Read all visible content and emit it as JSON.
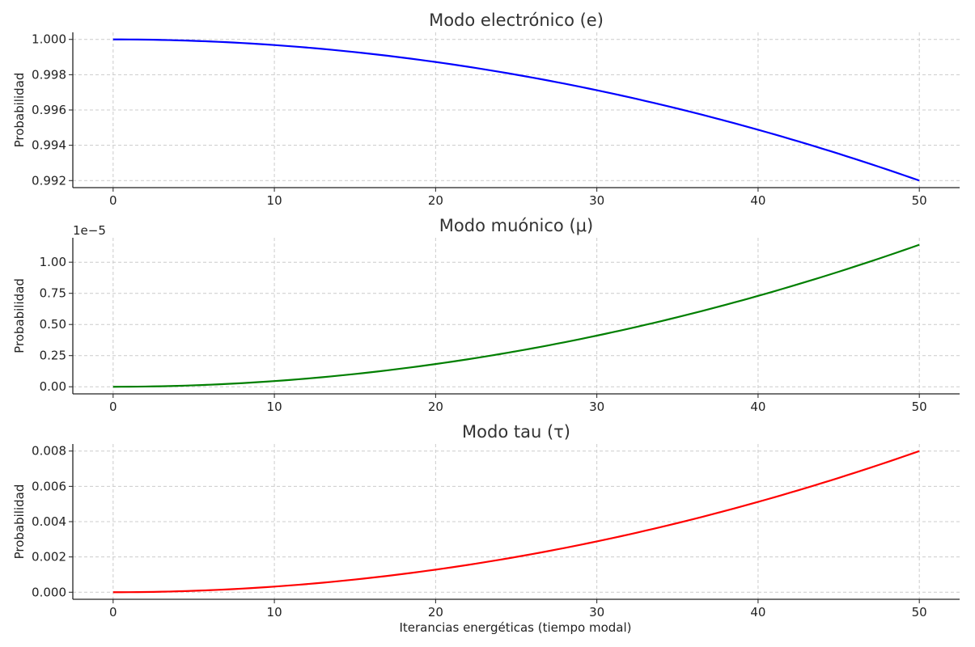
{
  "xlabel": "Iterancias energéticas (tiempo modal)",
  "chart_data": [
    {
      "type": "line",
      "title": "Modo electrónico (e)",
      "ylabel": "Probabilidad",
      "offset_text": "",
      "color": "#0000ff",
      "xlim": [
        -2.5,
        52.5
      ],
      "ylim": [
        0.9916,
        1.0004
      ],
      "xticks": [
        0,
        10,
        20,
        30,
        40,
        50
      ],
      "xtick_labels": [
        "0",
        "10",
        "20",
        "30",
        "40",
        "50"
      ],
      "yticks": [
        0.992,
        0.994,
        0.996,
        0.998,
        1.0
      ],
      "ytick_labels": [
        "0.992",
        "0.994",
        "0.996",
        "0.998",
        "1.000"
      ],
      "grid": true,
      "x": [
        0,
        5,
        10,
        15,
        20,
        25,
        30,
        35,
        40,
        45,
        50
      ],
      "y": [
        1.0,
        0.99992,
        0.99968,
        0.99928,
        0.99872,
        0.998,
        0.99712,
        0.99608,
        0.99488,
        0.99352,
        0.992
      ]
    },
    {
      "type": "line",
      "title": "Modo muónico (μ)",
      "ylabel": "Probabilidad",
      "offset_text": "1e−5",
      "color": "#007f00",
      "xlim": [
        -2.5,
        52.5
      ],
      "ylim": [
        -0.057,
        1.196
      ],
      "xticks": [
        0,
        10,
        20,
        30,
        40,
        50
      ],
      "xtick_labels": [
        "0",
        "10",
        "20",
        "30",
        "40",
        "50"
      ],
      "yticks": [
        0.0,
        0.25,
        0.5,
        0.75,
        1.0
      ],
      "ytick_labels": [
        "0.00",
        "0.25",
        "0.50",
        "0.75",
        "1.00"
      ],
      "grid": true,
      "x": [
        0,
        5,
        10,
        15,
        20,
        25,
        30,
        35,
        40,
        45,
        50
      ],
      "y": [
        0.0,
        0.0114,
        0.0456,
        0.1026,
        0.1824,
        0.285,
        0.4104,
        0.5586,
        0.7296,
        0.9234,
        1.14
      ]
    },
    {
      "type": "line",
      "title": "Modo tau (τ)",
      "ylabel": "Probabilidad",
      "offset_text": "",
      "color": "#ff0000",
      "xlim": [
        -2.5,
        52.5
      ],
      "ylim": [
        -0.0004,
        0.0084
      ],
      "xticks": [
        0,
        10,
        20,
        30,
        40,
        50
      ],
      "xtick_labels": [
        "0",
        "10",
        "20",
        "30",
        "40",
        "50"
      ],
      "yticks": [
        0.0,
        0.002,
        0.004,
        0.006,
        0.008
      ],
      "ytick_labels": [
        "0.000",
        "0.002",
        "0.004",
        "0.006",
        "0.008"
      ],
      "grid": true,
      "x": [
        0,
        5,
        10,
        15,
        20,
        25,
        30,
        35,
        40,
        45,
        50
      ],
      "y": [
        0.0,
        8e-05,
        0.00032,
        0.00072,
        0.00128,
        0.002,
        0.00288,
        0.00392,
        0.00512,
        0.00648,
        0.008
      ]
    }
  ]
}
